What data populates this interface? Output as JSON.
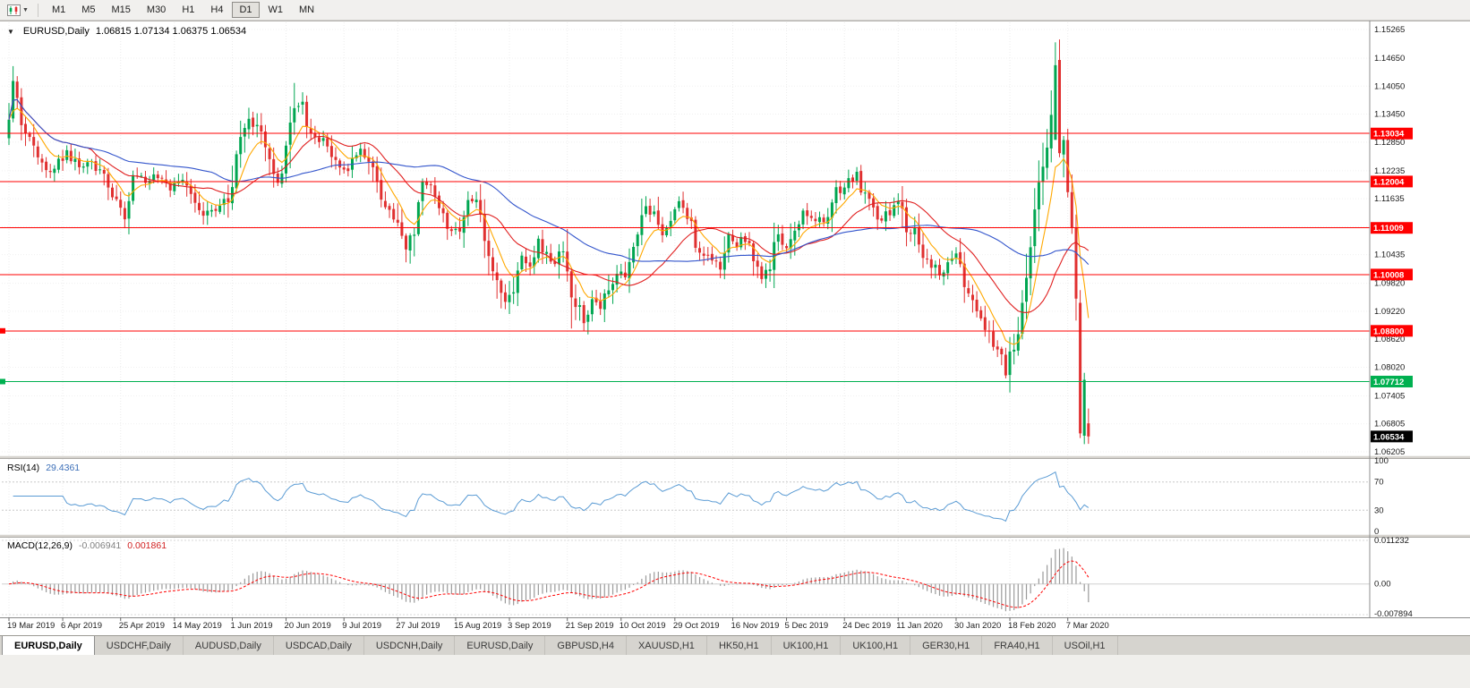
{
  "toolbar": {
    "timeframes": [
      "M1",
      "M5",
      "M15",
      "M30",
      "H1",
      "H4",
      "D1",
      "W1",
      "MN"
    ],
    "active_timeframe": "D1"
  },
  "chart": {
    "symbol_timeframe": "EURUSD,Daily",
    "ohlc_text": "1.06815 1.07134 1.06375 1.06534",
    "open": "1.06815",
    "high": "1.07134",
    "low": "1.06375",
    "close": "1.06534",
    "current_price": "1.06534",
    "current_price_box_color": "#000000"
  },
  "chart_data": {
    "type": "candlestick",
    "symbol": "EURUSD",
    "timeframe": "Daily",
    "num_candles": 262,
    "y_max": 1.15265,
    "y_min": 1.06205,
    "y_tick_labels": [
      "1.15265",
      "1.14650",
      "1.14050",
      "1.13450",
      "1.12850",
      "1.12235",
      "1.11635",
      "1.11035",
      "1.10435",
      "1.09820",
      "1.09220",
      "1.08620",
      "1.08020",
      "1.07405",
      "1.06805",
      "1.06205"
    ],
    "x_tick_labels": [
      "19 Mar 2019",
      "6 Apr 2019",
      "25 Apr 2019",
      "14 May 2019",
      "1 Jun 2019",
      "20 Jun 2019",
      "9 Jul 2019",
      "27 Jul 2019",
      "15 Aug 2019",
      "3 Sep 2019",
      "21 Sep 2019",
      "10 Oct 2019",
      "29 Oct 2019",
      "16 Nov 2019",
      "5 Dec 2019",
      "24 Dec 2019",
      "11 Jan 2020",
      "30 Jan 2020",
      "18 Feb 2020",
      "7 Mar 2020"
    ],
    "hlines": [
      {
        "price": 1.13034,
        "label": "1.13034",
        "color": "#ff0000"
      },
      {
        "price": 1.12004,
        "label": "1.12004",
        "color": "#ff0000"
      },
      {
        "price": 1.11009,
        "label": "1.11009",
        "color": "#ff0000"
      },
      {
        "price": 1.10008,
        "label": "1.10008",
        "color": "#ff0000"
      },
      {
        "price": 1.088,
        "label": "1.08800",
        "color": "#ff0000",
        "left_marker": true
      },
      {
        "price": 1.07712,
        "label": "1.07712",
        "color": "#00b050",
        "left_marker": true
      }
    ],
    "close_anchors": [
      [
        0,
        1.1345
      ],
      [
        1,
        1.1415
      ],
      [
        3,
        1.133
      ],
      [
        5,
        1.13
      ],
      [
        7,
        1.1248
      ],
      [
        9,
        1.1218
      ],
      [
        12,
        1.1242
      ],
      [
        14,
        1.1262
      ],
      [
        17,
        1.1235
      ],
      [
        20,
        1.124
      ],
      [
        23,
        1.1215
      ],
      [
        26,
        1.116
      ],
      [
        28,
        1.1118
      ],
      [
        30,
        1.1215
      ],
      [
        33,
        1.12
      ],
      [
        36,
        1.1212
      ],
      [
        39,
        1.1185
      ],
      [
        42,
        1.12
      ],
      [
        45,
        1.116
      ],
      [
        47,
        1.1122
      ],
      [
        50,
        1.1145
      ],
      [
        53,
        1.117
      ],
      [
        56,
        1.1275
      ],
      [
        58,
        1.1335
      ],
      [
        60,
        1.1318
      ],
      [
        63,
        1.126
      ],
      [
        65,
        1.12
      ],
      [
        67,
        1.1258
      ],
      [
        69,
        1.137
      ],
      [
        71,
        1.1365
      ],
      [
        73,
        1.1295
      ],
      [
        76,
        1.1288
      ],
      [
        79,
        1.1245
      ],
      [
        82,
        1.1228
      ],
      [
        85,
        1.1272
      ],
      [
        88,
        1.1222
      ],
      [
        91,
        1.1152
      ],
      [
        94,
        1.1118
      ],
      [
        96,
        1.1048
      ],
      [
        98,
        1.109
      ],
      [
        100,
        1.12
      ],
      [
        103,
        1.1178
      ],
      [
        106,
        1.1102
      ],
      [
        109,
        1.1098
      ],
      [
        111,
        1.1172
      ],
      [
        113,
        1.1148
      ],
      [
        115,
        1.1082
      ],
      [
        118,
        1.0992
      ],
      [
        120,
        1.0938
      ],
      [
        122,
        1.0978
      ],
      [
        124,
        1.1038
      ],
      [
        126,
        1.1008
      ],
      [
        128,
        1.1072
      ],
      [
        130,
        1.1042
      ],
      [
        132,
        1.1018
      ],
      [
        134,
        1.1062
      ],
      [
        136,
        1.0958
      ],
      [
        139,
        1.0902
      ],
      [
        141,
        1.0942
      ],
      [
        143,
        1.0928
      ],
      [
        145,
        1.0968
      ],
      [
        147,
        1.1012
      ],
      [
        149,
        1.0998
      ],
      [
        151,
        1.1052
      ],
      [
        154,
        1.115
      ],
      [
        156,
        1.1128
      ],
      [
        158,
        1.1082
      ],
      [
        160,
        1.1112
      ],
      [
        162,
        1.115
      ],
      [
        164,
        1.1132
      ],
      [
        166,
        1.1072
      ],
      [
        168,
        1.1038
      ],
      [
        170,
        1.1032
      ],
      [
        172,
        1.1008
      ],
      [
        174,
        1.1078
      ],
      [
        176,
        1.1062
      ],
      [
        178,
        1.108
      ],
      [
        180,
        1.1022
      ],
      [
        182,
        1.0998
      ],
      [
        184,
        1.1018
      ],
      [
        186,
        1.1082
      ],
      [
        188,
        1.1052
      ],
      [
        190,
        1.1095
      ],
      [
        192,
        1.1138
      ],
      [
        194,
        1.1118
      ],
      [
        196,
        1.1122
      ],
      [
        198,
        1.1118
      ],
      [
        200,
        1.1178
      ],
      [
        202,
        1.1192
      ],
      [
        205,
        1.1212
      ],
      [
        207,
        1.1172
      ],
      [
        209,
        1.1142
      ],
      [
        211,
        1.1112
      ],
      [
        213,
        1.1138
      ],
      [
        215,
        1.1158
      ],
      [
        217,
        1.1098
      ],
      [
        219,
        1.1088
      ],
      [
        221,
        1.1042
      ],
      [
        223,
        1.1022
      ],
      [
        225,
        1.1002
      ],
      [
        227,
        1.1028
      ],
      [
        229,
        1.1042
      ],
      [
        231,
        1.0978
      ],
      [
        233,
        1.0948
      ],
      [
        235,
        1.0918
      ],
      [
        237,
        1.0872
      ],
      [
        239,
        1.0842
      ],
      [
        241,
        1.0792
      ],
      [
        243,
        1.0852
      ],
      [
        245,
        1.0932
      ],
      [
        246,
        1.1002
      ],
      [
        248,
        1.1138
      ],
      [
        250,
        1.1232
      ],
      [
        252,
        1.1352
      ],
      [
        253,
        1.145
      ],
      [
        254,
        1.1282
      ],
      [
        255,
        1.1272
      ],
      [
        256,
        1.1184
      ],
      [
        257,
        1.108
      ],
      [
        258,
        1.096
      ],
      [
        259,
        1.07
      ],
      [
        260,
        1.076
      ],
      [
        261,
        1.06534
      ]
    ],
    "overrides": {
      "1": {
        "h": 1.1448
      },
      "69": {
        "h": 1.1412
      },
      "96": {
        "l": 1.1027
      },
      "136": {
        "l": 1.0885
      },
      "139": {
        "l": 1.0879
      },
      "241": {
        "l": 1.0778
      },
      "253": {
        "o": 1.129,
        "c": 1.145,
        "h": 1.1499
      },
      "259": {
        "o": 1.094,
        "c": 1.066,
        "l": 1.065
      },
      "260": {
        "o": 1.0655,
        "c": 1.0775,
        "h": 1.079,
        "l": 1.0637
      },
      "261": {
        "o": 1.06815,
        "h": 1.07134,
        "l": 1.06375,
        "c": 1.06534
      }
    },
    "colors": {
      "up": "#00a651",
      "down": "#e03030"
    },
    "moving_averages": [
      {
        "name": "ma-fast",
        "type": "ema",
        "period": 8,
        "color": "#ffa800"
      },
      {
        "name": "ma-mid",
        "type": "sma",
        "period": 20,
        "color": "#e02020"
      },
      {
        "name": "ma-slow",
        "type": "sma",
        "period": 50,
        "color": "#3355cc"
      }
    ]
  },
  "rsi": {
    "title": "RSI(14)",
    "value": "29.4361",
    "period": 14,
    "levels": [
      "100",
      "70",
      "30",
      "0"
    ],
    "level_lines": [
      70,
      30
    ],
    "color": "#5a9bd4"
  },
  "macd": {
    "title": "MACD(12,26,9)",
    "value_main": "-0.006941",
    "value_signal": "0.001861",
    "fast": 12,
    "slow": 26,
    "signal": 9,
    "scale": [
      "0.011232",
      "0.00",
      "-0.007894"
    ],
    "scale_max": 0.011232,
    "scale_min": -0.007894,
    "histogram_color": "#9a9a9a",
    "signal_color": "#ff0000"
  },
  "tabs": [
    {
      "label": "EURUSD,Daily",
      "active": true
    },
    {
      "label": "USDCHF,Daily"
    },
    {
      "label": "AUDUSD,Daily"
    },
    {
      "label": "USDCAD,Daily"
    },
    {
      "label": "USDCNH,Daily"
    },
    {
      "label": "EURUSD,Daily"
    },
    {
      "label": "GBPUSD,H4"
    },
    {
      "label": "XAUUSD,H1"
    },
    {
      "label": "HK50,H1"
    },
    {
      "label": "UK100,H1"
    },
    {
      "label": "UK100,H1"
    },
    {
      "label": "GER30,H1"
    },
    {
      "label": "FRA40,H1"
    },
    {
      "label": "USOil,H1"
    }
  ]
}
